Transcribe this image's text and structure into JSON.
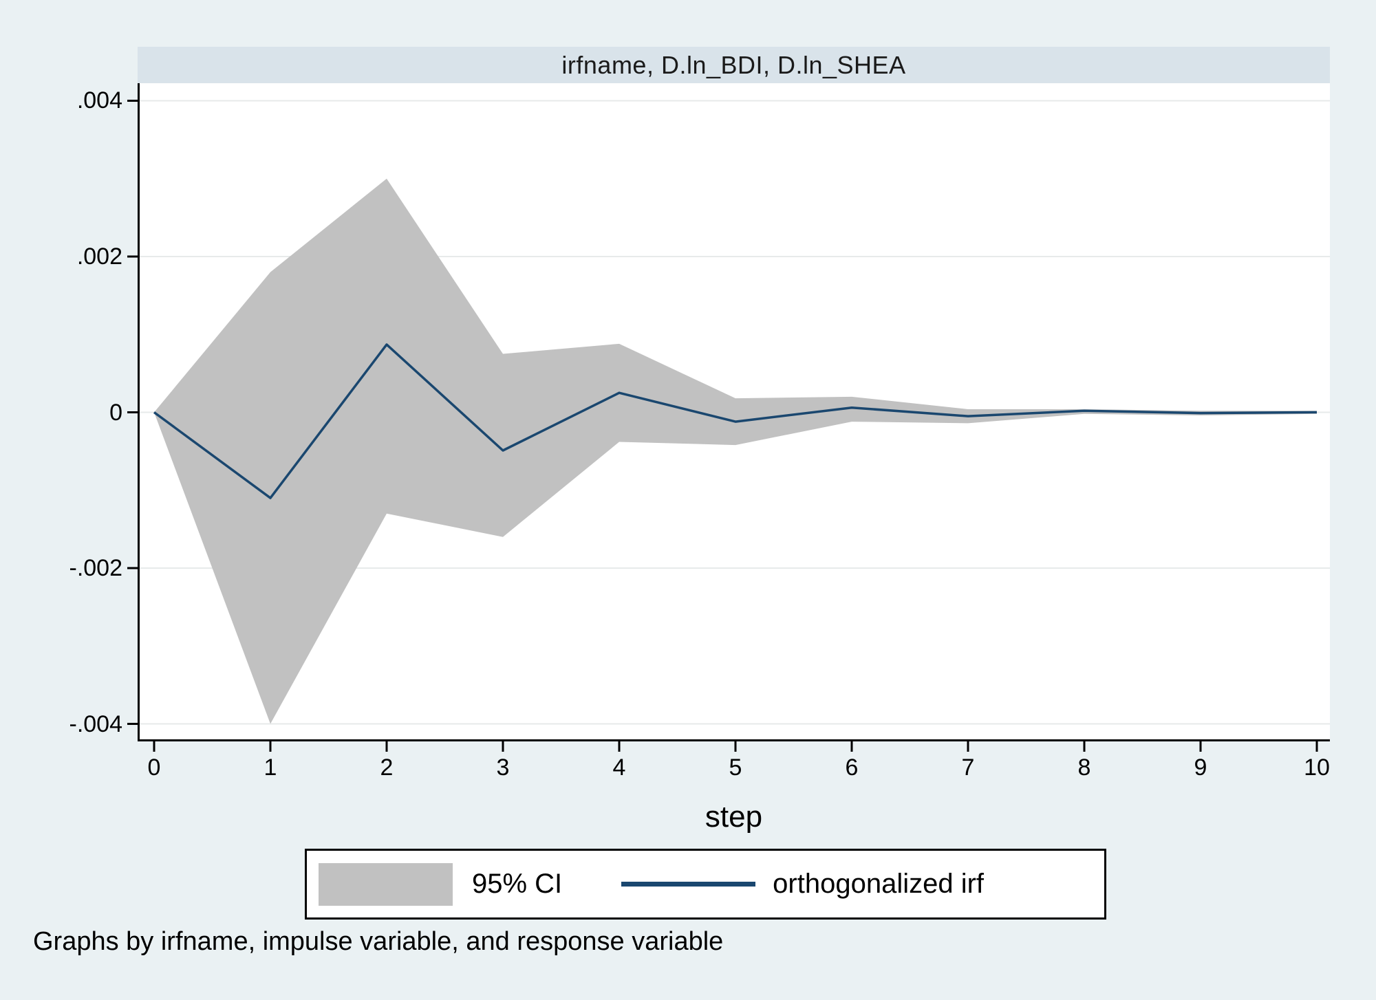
{
  "title": "irfname, D.ln_BDI, D.ln_SHEA",
  "footer": "Graphs by irfname, impulse variable, and response variable",
  "legend": {
    "ci_label": "95% CI",
    "irf_label": "orthogonalized irf"
  },
  "colors": {
    "background": "#eaf1f3",
    "title_strip": "#d9e3ea",
    "plot_bg": "#ffffff",
    "gridline": "#e7eaea",
    "axis": "#000000",
    "ci_fill": "#c1c1c1",
    "irf_line": "#1a476f"
  },
  "chart_data": {
    "type": "area",
    "title": "irfname, D.ln_BDI, D.ln_SHEA",
    "xlabel": "step",
    "ylabel": "",
    "x": [
      0,
      1,
      2,
      3,
      4,
      5,
      6,
      7,
      8,
      9,
      10
    ],
    "series": [
      {
        "name": "orthogonalized irf",
        "style": "line",
        "values": [
          0.0,
          -0.0011,
          0.00087,
          -0.00049,
          0.00025,
          -0.00012,
          6e-05,
          -5e-05,
          2e-05,
          -1e-05,
          0.0
        ]
      },
      {
        "name": "95% CI lower",
        "style": "band-lower",
        "values": [
          0.0,
          -0.004,
          -0.0013,
          -0.0016,
          -0.00038,
          -0.00042,
          -0.00012,
          -0.00014,
          -2e-05,
          -4e-05,
          -2e-05
        ]
      },
      {
        "name": "95% CI upper",
        "style": "band-upper",
        "values": [
          0.0,
          0.0018,
          0.003,
          0.00075,
          0.00088,
          0.00018,
          0.0002,
          4e-05,
          4e-05,
          2e-05,
          2e-05
        ]
      }
    ],
    "xlim": [
      0,
      10
    ],
    "ylim": [
      -0.004225,
      0.004225
    ],
    "xticks": [
      0,
      1,
      2,
      3,
      4,
      5,
      6,
      7,
      8,
      9,
      10
    ],
    "xtick_labels": [
      "0",
      "1",
      "2",
      "3",
      "4",
      "5",
      "6",
      "7",
      "8",
      "9",
      "10"
    ],
    "yticks": [
      0.004,
      0.002,
      0,
      -0.002,
      -0.004
    ],
    "ytick_labels": [
      ".004",
      ".002",
      "0",
      "-.002",
      "-.004"
    ],
    "grid": true,
    "legend_position": "bottom",
    "legend_entries": [
      "95% CI",
      "orthogonalized irf"
    ]
  }
}
